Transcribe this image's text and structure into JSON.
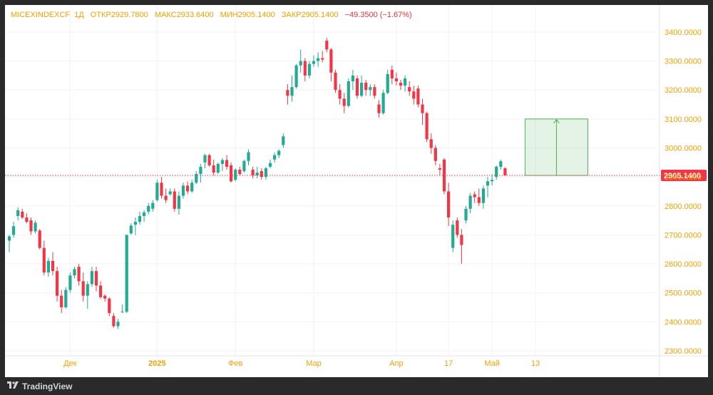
{
  "legend": {
    "symbol": "MICEXINDEXCF",
    "interval": "1Д",
    "open": "ОТКР2929.7800",
    "high": "МАКС2933.6400",
    "low": "МИН2905.1400",
    "close": "ЗАКР2905.1400",
    "change": "−49.3500 (−1.67%)"
  },
  "footer": {
    "brand": "TradingView"
  },
  "chart_data": {
    "type": "candlestick",
    "ylim": [
      2270,
      3440
    ],
    "yticks": [
      "3400.0000",
      "3300.0000",
      "3200.0000",
      "3100.0000",
      "3000.0000",
      "2900.0000",
      "2800.0000",
      "2700.0000",
      "2600.0000",
      "2500.0000",
      "2400.0000",
      "2300.0000"
    ],
    "ytick_values": [
      3400,
      3300,
      3200,
      3100,
      3000,
      2900,
      2800,
      2700,
      2600,
      2500,
      2400,
      2300
    ],
    "xticks": [
      "Дек",
      "2025",
      "Фев",
      "Мар",
      "Апр",
      "17",
      "Май",
      "13"
    ],
    "xtick_index": [
      14,
      34,
      52,
      70,
      89,
      101,
      111,
      121
    ],
    "last_price_label": "2905.1400",
    "last_price": 2905.14,
    "colors": {
      "up": "#22ab94",
      "down": "#f23645",
      "axis_text": "#f59f00",
      "grid": "#f2f2f2",
      "price_line": "#f23645",
      "projection": "#4caf50"
    },
    "candles": [
      [
        2680,
        2700,
        2640,
        2695
      ],
      [
        2700,
        2745,
        2690,
        2730
      ],
      [
        2765,
        2795,
        2750,
        2785
      ],
      [
        2780,
        2790,
        2755,
        2760
      ],
      [
        2760,
        2775,
        2740,
        2745
      ],
      [
        2750,
        2760,
        2700,
        2712
      ],
      [
        2712,
        2750,
        2705,
        2742
      ],
      [
        2715,
        2720,
        2650,
        2655
      ],
      [
        2655,
        2680,
        2560,
        2570
      ],
      [
        2570,
        2620,
        2555,
        2610
      ],
      [
        2610,
        2640,
        2560,
        2575
      ],
      [
        2575,
        2590,
        2470,
        2490
      ],
      [
        2490,
        2510,
        2430,
        2450
      ],
      [
        2450,
        2520,
        2445,
        2510
      ],
      [
        2510,
        2570,
        2500,
        2560
      ],
      [
        2560,
        2590,
        2550,
        2582
      ],
      [
        2590,
        2600,
        2525,
        2540
      ],
      [
        2540,
        2570,
        2470,
        2490
      ],
      [
        2490,
        2540,
        2445,
        2530
      ],
      [
        2530,
        2590,
        2520,
        2575
      ],
      [
        2575,
        2590,
        2505,
        2525
      ],
      [
        2525,
        2540,
        2480,
        2485
      ],
      [
        2490,
        2495,
        2470,
        2480
      ],
      [
        2480,
        2485,
        2420,
        2430
      ],
      [
        2420,
        2430,
        2380,
        2385
      ],
      [
        2385,
        2410,
        2375,
        2400
      ],
      [
        2435,
        2460,
        2430,
        2435
      ],
      [
        2435,
        2700,
        2430,
        2700
      ],
      [
        2705,
        2740,
        2700,
        2732
      ],
      [
        2735,
        2760,
        2700,
        2745
      ],
      [
        2745,
        2780,
        2735,
        2765
      ],
      [
        2765,
        2785,
        2745,
        2778
      ],
      [
        2780,
        2810,
        2770,
        2800
      ],
      [
        2790,
        2820,
        2780,
        2810
      ],
      [
        2820,
        2890,
        2815,
        2880
      ],
      [
        2880,
        2900,
        2825,
        2835
      ],
      [
        2835,
        2860,
        2810,
        2820
      ],
      [
        2840,
        2860,
        2835,
        2850
      ],
      [
        2850,
        2860,
        2780,
        2790
      ],
      [
        2790,
        2850,
        2770,
        2835
      ],
      [
        2835,
        2880,
        2825,
        2870
      ],
      [
        2870,
        2885,
        2840,
        2850
      ],
      [
        2850,
        2890,
        2845,
        2880
      ],
      [
        2880,
        2920,
        2875,
        2910
      ],
      [
        2910,
        2945,
        2880,
        2935
      ],
      [
        2950,
        2980,
        2930,
        2975
      ],
      [
        2975,
        2980,
        2935,
        2940
      ],
      [
        2940,
        2960,
        2905,
        2915
      ],
      [
        2915,
        2950,
        2910,
        2945
      ],
      [
        2945,
        2965,
        2920,
        2958
      ],
      [
        2958,
        2975,
        2925,
        2935
      ],
      [
        2940,
        2950,
        2880,
        2885
      ],
      [
        2890,
        2930,
        2885,
        2925
      ],
      [
        2925,
        2935,
        2905,
        2910
      ],
      [
        2920,
        2960,
        2915,
        2955
      ],
      [
        2955,
        2995,
        2940,
        2985
      ],
      [
        2925,
        2935,
        2895,
        2905
      ],
      [
        2905,
        2935,
        2895,
        2915
      ],
      [
        2920,
        2930,
        2890,
        2900
      ],
      [
        2900,
        2935,
        2890,
        2930
      ],
      [
        2935,
        2960,
        2930,
        2948
      ],
      [
        2960,
        2985,
        2950,
        2975
      ],
      [
        2975,
        2995,
        2965,
        2990
      ],
      [
        3010,
        3050,
        3000,
        3040
      ],
      [
        3200,
        3220,
        3150,
        3180
      ],
      [
        3180,
        3250,
        3160,
        3210
      ],
      [
        3210,
        3290,
        3205,
        3285
      ],
      [
        3285,
        3340,
        3260,
        3300
      ],
      [
        3300,
        3310,
        3230,
        3250
      ],
      [
        3250,
        3300,
        3240,
        3290
      ],
      [
        3290,
        3320,
        3280,
        3300
      ],
      [
        3300,
        3330,
        3280,
        3310
      ],
      [
        3310,
        3335,
        3295,
        3305
      ],
      [
        3370,
        3380,
        3330,
        3340
      ],
      [
        3340,
        3345,
        3230,
        3260
      ],
      [
        3260,
        3270,
        3190,
        3200
      ],
      [
        3200,
        3220,
        3150,
        3170
      ],
      [
        3170,
        3190,
        3120,
        3145
      ],
      [
        3145,
        3240,
        3140,
        3230
      ],
      [
        3230,
        3270,
        3200,
        3250
      ],
      [
        3240,
        3250,
        3170,
        3180
      ],
      [
        3180,
        3250,
        3175,
        3225
      ],
      [
        3225,
        3235,
        3180,
        3200
      ],
      [
        3200,
        3220,
        3180,
        3210
      ],
      [
        3210,
        3220,
        3170,
        3180
      ],
      [
        3150,
        3165,
        3105,
        3120
      ],
      [
        3120,
        3200,
        3115,
        3190
      ],
      [
        3190,
        3270,
        3185,
        3255
      ],
      [
        3270,
        3285,
        3220,
        3240
      ],
      [
        3240,
        3260,
        3215,
        3230
      ],
      [
        3225,
        3235,
        3200,
        3215
      ],
      [
        3215,
        3250,
        3195,
        3240
      ],
      [
        3210,
        3230,
        3180,
        3195
      ],
      [
        3195,
        3215,
        3150,
        3170
      ],
      [
        3205,
        3215,
        3140,
        3150
      ],
      [
        3150,
        3170,
        3080,
        3120
      ],
      [
        3120,
        3125,
        3020,
        3030
      ],
      [
        3030,
        3050,
        2980,
        3000
      ],
      [
        3000,
        3010,
        2940,
        2955
      ],
      [
        2930,
        2945,
        2905,
        2925
      ],
      [
        2960,
        2965,
        2840,
        2850
      ],
      [
        2850,
        2880,
        2730,
        2760
      ],
      [
        2655,
        2750,
        2640,
        2735
      ],
      [
        2750,
        2760,
        2690,
        2700
      ],
      [
        2700,
        2720,
        2600,
        2665
      ],
      [
        2750,
        2800,
        2740,
        2790
      ],
      [
        2790,
        2845,
        2775,
        2835
      ],
      [
        2840,
        2850,
        2810,
        2830
      ],
      [
        2830,
        2860,
        2800,
        2810
      ],
      [
        2810,
        2870,
        2790,
        2860
      ],
      [
        2870,
        2900,
        2830,
        2885
      ],
      [
        2885,
        2910,
        2870,
        2890
      ],
      [
        2900,
        2940,
        2890,
        2935
      ],
      [
        2935,
        2960,
        2925,
        2954
      ],
      [
        2929.78,
        2933.64,
        2905.14,
        2905.14
      ]
    ],
    "projection": {
      "from": 2905.14,
      "to": 3100
    }
  }
}
